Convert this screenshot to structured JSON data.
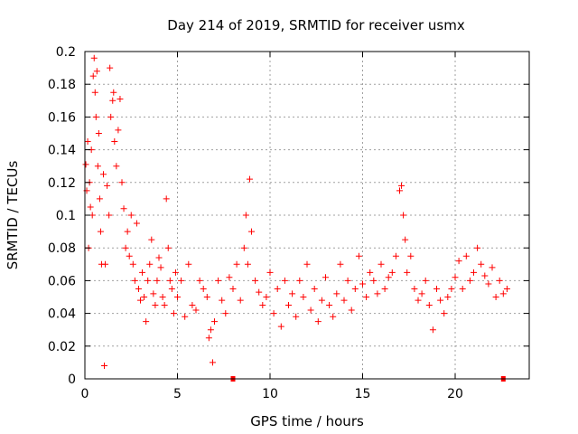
{
  "chart_data": {
    "type": "scatter",
    "title": "Day 214 of 2019, SRMTID for receiver usmx",
    "xlabel": "GPS time / hours",
    "ylabel": "SRMTID / TECUs",
    "xlim": [
      0,
      24
    ],
    "ylim": [
      0,
      0.2
    ],
    "x_ticks": [
      0,
      5,
      10,
      15,
      20
    ],
    "x_tick_labels": [
      "0",
      "5",
      "10",
      "15",
      "20"
    ],
    "y_ticks": [
      0,
      0.02,
      0.04,
      0.06,
      0.08,
      0.1,
      0.12,
      0.14,
      0.16,
      0.18,
      0.2
    ],
    "y_tick_labels": [
      "0",
      "0.02",
      "0.04",
      "0.06",
      "0.08",
      "0.1",
      "0.12",
      "0.14",
      "0.16",
      "0.18",
      "0.2"
    ],
    "grid": true,
    "marker": "+",
    "color": "#ff0000",
    "series": [
      {
        "name": "SRMTID",
        "points": [
          [
            0.05,
            0.131
          ],
          [
            0.1,
            0.115
          ],
          [
            0.15,
            0.145
          ],
          [
            0.2,
            0.08
          ],
          [
            0.25,
            0.12
          ],
          [
            0.3,
            0.105
          ],
          [
            0.35,
            0.14
          ],
          [
            0.4,
            0.1
          ],
          [
            0.45,
            0.185
          ],
          [
            0.5,
            0.196
          ],
          [
            0.55,
            0.175
          ],
          [
            0.6,
            0.16
          ],
          [
            0.65,
            0.188
          ],
          [
            0.7,
            0.13
          ],
          [
            0.75,
            0.15
          ],
          [
            0.8,
            0.11
          ],
          [
            0.85,
            0.09
          ],
          [
            0.9,
            0.07
          ],
          [
            1.0,
            0.125
          ],
          [
            1.05,
            0.008
          ],
          [
            1.1,
            0.07
          ],
          [
            1.2,
            0.118
          ],
          [
            1.3,
            0.1
          ],
          [
            1.35,
            0.19
          ],
          [
            1.4,
            0.16
          ],
          [
            1.5,
            0.17
          ],
          [
            1.55,
            0.175
          ],
          [
            1.6,
            0.145
          ],
          [
            1.7,
            0.13
          ],
          [
            1.8,
            0.152
          ],
          [
            1.9,
            0.171
          ],
          [
            2.0,
            0.12
          ],
          [
            2.1,
            0.104
          ],
          [
            2.2,
            0.08
          ],
          [
            2.3,
            0.09
          ],
          [
            2.4,
            0.075
          ],
          [
            2.5,
            0.1
          ],
          [
            2.6,
            0.07
          ],
          [
            2.7,
            0.06
          ],
          [
            2.8,
            0.095
          ],
          [
            2.9,
            0.055
          ],
          [
            3.0,
            0.048
          ],
          [
            3.1,
            0.065
          ],
          [
            3.2,
            0.05
          ],
          [
            3.3,
            0.035
          ],
          [
            3.4,
            0.06
          ],
          [
            3.5,
            0.07
          ],
          [
            3.6,
            0.085
          ],
          [
            3.7,
            0.052
          ],
          [
            3.8,
            0.045
          ],
          [
            3.9,
            0.06
          ],
          [
            4.0,
            0.074
          ],
          [
            4.1,
            0.068
          ],
          [
            4.2,
            0.05
          ],
          [
            4.3,
            0.045
          ],
          [
            4.4,
            0.11
          ],
          [
            4.5,
            0.08
          ],
          [
            4.6,
            0.06
          ],
          [
            4.7,
            0.055
          ],
          [
            4.8,
            0.04
          ],
          [
            4.9,
            0.065
          ],
          [
            5.0,
            0.05
          ],
          [
            5.2,
            0.06
          ],
          [
            5.4,
            0.038
          ],
          [
            5.6,
            0.07
          ],
          [
            5.8,
            0.045
          ],
          [
            6.0,
            0.042
          ],
          [
            6.2,
            0.06
          ],
          [
            6.4,
            0.055
          ],
          [
            6.6,
            0.05
          ],
          [
            6.7,
            0.025
          ],
          [
            6.8,
            0.03
          ],
          [
            6.9,
            0.01
          ],
          [
            7.0,
            0.035
          ],
          [
            7.2,
            0.06
          ],
          [
            7.4,
            0.048
          ],
          [
            7.6,
            0.04
          ],
          [
            7.8,
            0.062
          ],
          [
            8.0,
            0.055
          ],
          [
            8.2,
            0.07
          ],
          [
            8.4,
            0.048
          ],
          [
            8.6,
            0.08
          ],
          [
            8.7,
            0.1
          ],
          [
            8.8,
            0.07
          ],
          [
            8.9,
            0.122
          ],
          [
            9.0,
            0.09
          ],
          [
            9.2,
            0.06
          ],
          [
            9.4,
            0.053
          ],
          [
            9.6,
            0.045
          ],
          [
            9.8,
            0.05
          ],
          [
            10.0,
            0.065
          ],
          [
            10.2,
            0.04
          ],
          [
            10.4,
            0.055
          ],
          [
            10.6,
            0.032
          ],
          [
            10.8,
            0.06
          ],
          [
            11.0,
            0.045
          ],
          [
            11.2,
            0.052
          ],
          [
            11.4,
            0.038
          ],
          [
            11.6,
            0.06
          ],
          [
            11.8,
            0.05
          ],
          [
            12.0,
            0.07
          ],
          [
            12.2,
            0.042
          ],
          [
            12.4,
            0.055
          ],
          [
            12.6,
            0.035
          ],
          [
            12.8,
            0.048
          ],
          [
            13.0,
            0.062
          ],
          [
            13.2,
            0.045
          ],
          [
            13.4,
            0.038
          ],
          [
            13.6,
            0.052
          ],
          [
            13.8,
            0.07
          ],
          [
            14.0,
            0.048
          ],
          [
            14.2,
            0.06
          ],
          [
            14.4,
            0.042
          ],
          [
            14.6,
            0.055
          ],
          [
            14.8,
            0.075
          ],
          [
            15.0,
            0.058
          ],
          [
            15.2,
            0.05
          ],
          [
            15.4,
            0.065
          ],
          [
            15.6,
            0.06
          ],
          [
            15.8,
            0.052
          ],
          [
            16.0,
            0.07
          ],
          [
            16.2,
            0.055
          ],
          [
            16.4,
            0.062
          ],
          [
            16.6,
            0.065
          ],
          [
            16.8,
            0.075
          ],
          [
            17.0,
            0.115
          ],
          [
            17.1,
            0.118
          ],
          [
            17.2,
            0.1
          ],
          [
            17.3,
            0.085
          ],
          [
            17.4,
            0.065
          ],
          [
            17.6,
            0.075
          ],
          [
            17.8,
            0.055
          ],
          [
            18.0,
            0.048
          ],
          [
            18.2,
            0.052
          ],
          [
            18.4,
            0.06
          ],
          [
            18.6,
            0.045
          ],
          [
            18.8,
            0.03
          ],
          [
            19.0,
            0.055
          ],
          [
            19.2,
            0.048
          ],
          [
            19.4,
            0.04
          ],
          [
            19.6,
            0.05
          ],
          [
            19.8,
            0.055
          ],
          [
            20.0,
            0.062
          ],
          [
            20.2,
            0.072
          ],
          [
            20.4,
            0.055
          ],
          [
            20.6,
            0.075
          ],
          [
            20.8,
            0.06
          ],
          [
            21.0,
            0.065
          ],
          [
            21.2,
            0.08
          ],
          [
            21.4,
            0.07
          ],
          [
            21.6,
            0.063
          ],
          [
            21.8,
            0.058
          ],
          [
            22.0,
            0.068
          ],
          [
            22.2,
            0.05
          ],
          [
            22.4,
            0.06
          ],
          [
            22.6,
            0.052
          ],
          [
            22.8,
            0.055
          ]
        ]
      }
    ],
    "gaps": [
      8.0,
      22.6
    ]
  }
}
